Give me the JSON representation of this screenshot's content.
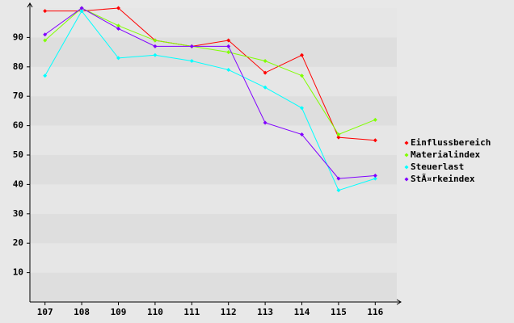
{
  "chart_data": {
    "type": "line",
    "categories": [
      "107",
      "108",
      "109",
      "110",
      "111",
      "112",
      "113",
      "114",
      "115",
      "116"
    ],
    "series": [
      {
        "name": "Einflussbereich",
        "color": "#ff0000",
        "values": [
          99,
          99,
          100,
          89,
          87,
          89,
          78,
          84,
          56,
          55
        ]
      },
      {
        "name": "Materialindex",
        "color": "#80ff00",
        "values": [
          89,
          100,
          94,
          89,
          87,
          85,
          82,
          77,
          57,
          62
        ]
      },
      {
        "name": "Steuerlast",
        "color": "#00ffff",
        "values": [
          77,
          99,
          83,
          84,
          82,
          79,
          73,
          66,
          38,
          42
        ]
      },
      {
        "name": "StÃ¤rkeindex",
        "color": "#8000ff",
        "values": [
          91,
          100,
          93,
          87,
          87,
          87,
          61,
          57,
          42,
          43
        ]
      }
    ],
    "ylim": [
      0,
      100
    ],
    "yticks": [
      10,
      20,
      30,
      40,
      50,
      60,
      70,
      80,
      90
    ],
    "grid": true,
    "legend": "right"
  }
}
